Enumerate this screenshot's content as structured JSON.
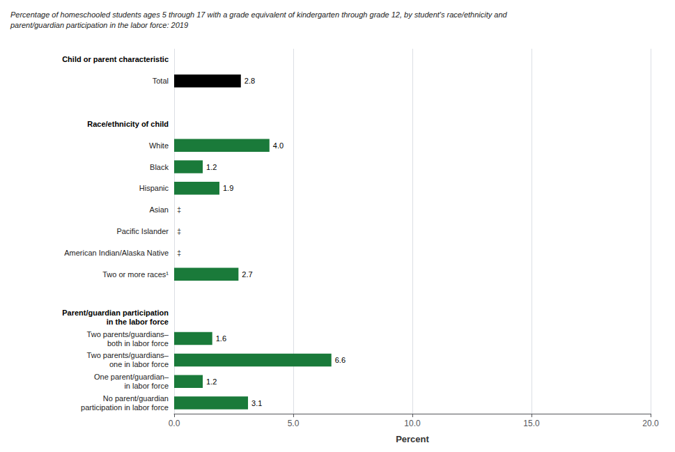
{
  "chart_data": {
    "type": "bar",
    "orientation": "horizontal",
    "title": "Percentage of homeschooled students ages 5 through 17 with a grade equivalent of kindergarten through grade 12, by student's race/ethnicity and\nparent/guardian participation in the labor force: 2019",
    "xlabel": "Percent",
    "categories": [
      "Child or parent characteristic",
      "Total",
      null,
      "Race/ethnicity of child",
      "White",
      "Black",
      "Hispanic",
      "Asian",
      "Pacific Islander",
      "American Indian/Alaska Native",
      "Two or more races¹",
      null,
      "Parent/guardian participation\nin the labor force",
      "Two parents/guardians–\nboth in labor force",
      "Two parents/guardians–\none in labor force",
      "One parent/guardian–\nin labor force",
      "No parent/guardian\nparticipation in labor force"
    ],
    "values": [
      null,
      2.8,
      null,
      null,
      4.0,
      1.2,
      1.9,
      null,
      null,
      null,
      2.7,
      null,
      null,
      1.6,
      6.6,
      1.2,
      3.1
    ],
    "value_labels": [
      null,
      "2.8",
      null,
      null,
      "4.0",
      "1.2",
      "1.9",
      "‡",
      "‡",
      "‡",
      "2.7",
      null,
      null,
      "1.6",
      "6.6",
      "1.2",
      "3.1"
    ],
    "colors": [
      null,
      "#000000",
      null,
      null,
      "#1a7a3a",
      "#1a7a3a",
      "#1a7a3a",
      null,
      null,
      null,
      "#1a7a3a",
      null,
      null,
      "#1a7a3a",
      "#1a7a3a",
      "#1a7a3a",
      "#1a7a3a"
    ],
    "xlim": [
      0,
      20
    ],
    "xticks": [
      {
        "value": 0,
        "label": "0.0"
      },
      {
        "value": 5,
        "label": "5.0"
      },
      {
        "value": 10,
        "label": "10.0"
      },
      {
        "value": 15,
        "label": "15.0"
      },
      {
        "value": 20,
        "label": "20.0"
      }
    ],
    "grid": true,
    "data_labels": true
  }
}
